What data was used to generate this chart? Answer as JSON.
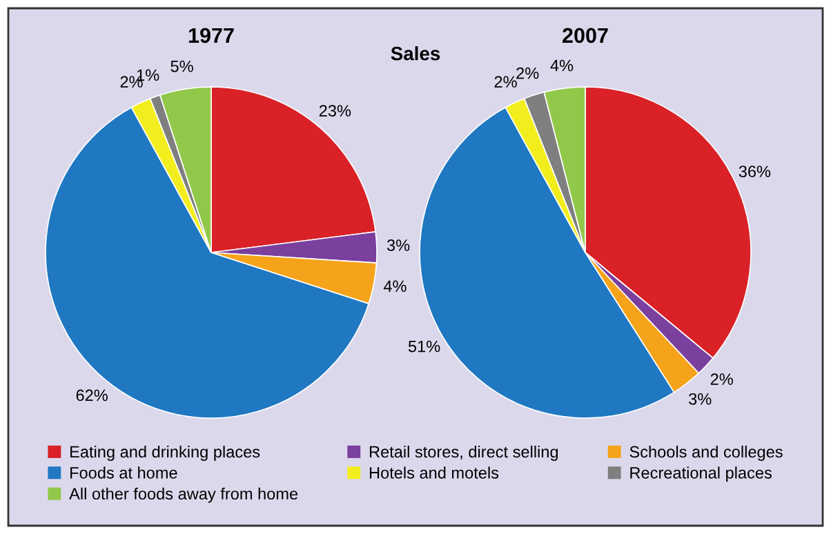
{
  "chart_data": [
    {
      "type": "pie",
      "title": "1977",
      "annotations": [
        "Sales"
      ],
      "legend": "bottom",
      "categories": [
        "Eating and drinking places",
        "Retail stores, direct selling",
        "Schools and colleges",
        "Foods at home",
        "Hotels and motels",
        "Recreational places",
        "All other foods away from home"
      ],
      "values": [
        23,
        3,
        4,
        62,
        2,
        1,
        5
      ],
      "value_labels": [
        "23%",
        "3%",
        "4%",
        "62%",
        "2%",
        "1%",
        "5%"
      ],
      "colors": [
        "#d92127",
        "#7b3f9e",
        "#f5a31a",
        "#1f78c1",
        "#f2ee1e",
        "#7f7f7f",
        "#92c84a"
      ]
    },
    {
      "type": "pie",
      "title": "2007",
      "values": [
        36,
        2,
        3,
        51,
        2,
        2,
        4
      ],
      "value_labels": [
        "36%",
        "2%",
        "3%",
        "51%",
        "2%",
        "2%",
        "4%"
      ],
      "colors": [
        "#d92127",
        "#7b3f9e",
        "#f5a31a",
        "#1f78c1",
        "#f2ee1e",
        "#7f7f7f",
        "#92c84a"
      ]
    }
  ]
}
